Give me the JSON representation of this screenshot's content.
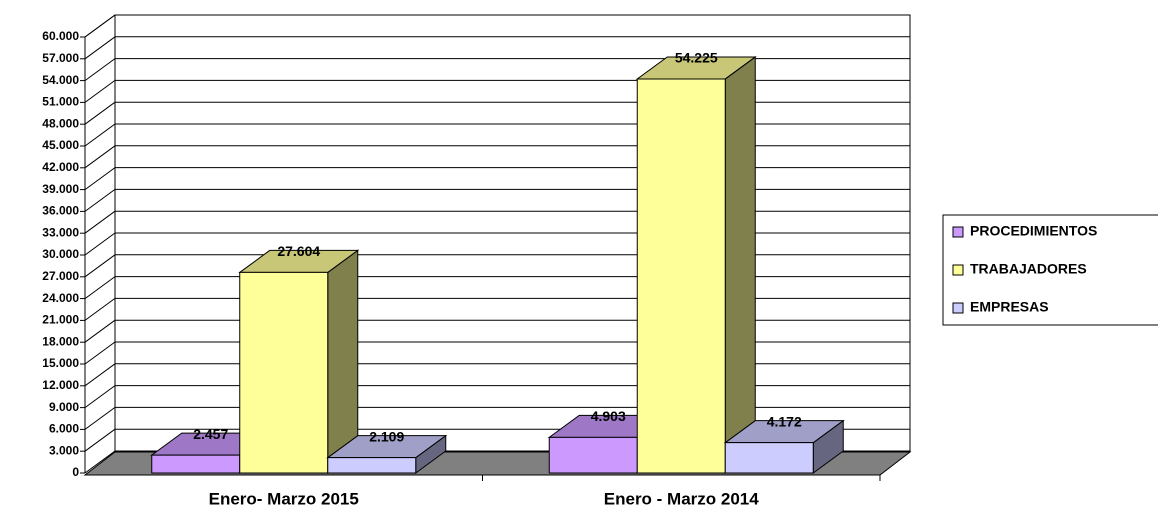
{
  "chart_data": {
    "type": "bar3d",
    "categories": [
      "Enero- Marzo 2015",
      "Enero - Marzo 2014"
    ],
    "series": [
      {
        "name": "PROCEDIMIENTOS",
        "color": "#cc99ff",
        "values": [
          2457,
          4903
        ],
        "value_labels": [
          "2.457",
          "4.903"
        ]
      },
      {
        "name": "TRABAJADORES",
        "color": "#ffff99",
        "values": [
          27604,
          54225
        ],
        "value_labels": [
          "27.604",
          "54.225"
        ]
      },
      {
        "name": "EMPRESAS",
        "color": "#ccccff",
        "values": [
          2109,
          4172
        ],
        "value_labels": [
          "2.109",
          "4.172"
        ]
      }
    ],
    "ylim": [
      0,
      60000
    ],
    "yticks": [
      0,
      {
        "value": 3000,
        "label": "3.000"
      },
      {
        "value": 6000,
        "label": "6.000"
      },
      {
        "value": 9000,
        "label": "9.000"
      },
      {
        "value": 12000,
        "label": "12.000"
      },
      {
        "value": 15000,
        "label": "15.000"
      },
      {
        "value": 18000,
        "label": "18.000"
      },
      {
        "value": 21000,
        "label": "21.000"
      },
      {
        "value": 24000,
        "label": "24.000"
      },
      {
        "value": 27000,
        "label": "27.000"
      },
      {
        "value": 30000,
        "label": "30.000"
      },
      {
        "value": 33000,
        "label": "33.000"
      },
      {
        "value": 36000,
        "label": "36.000"
      },
      {
        "value": 39000,
        "label": "39.000"
      },
      {
        "value": 42000,
        "label": "42.000"
      },
      {
        "value": 45000,
        "label": "45.000"
      },
      {
        "value": 48000,
        "label": "48.000"
      },
      {
        "value": 51000,
        "label": "51.000"
      },
      {
        "value": 54000,
        "label": "54.000"
      },
      {
        "value": 57000,
        "label": "57.000"
      },
      {
        "value": 60000,
        "label": "60.000"
      }
    ],
    "grid": true,
    "legend": "right"
  }
}
